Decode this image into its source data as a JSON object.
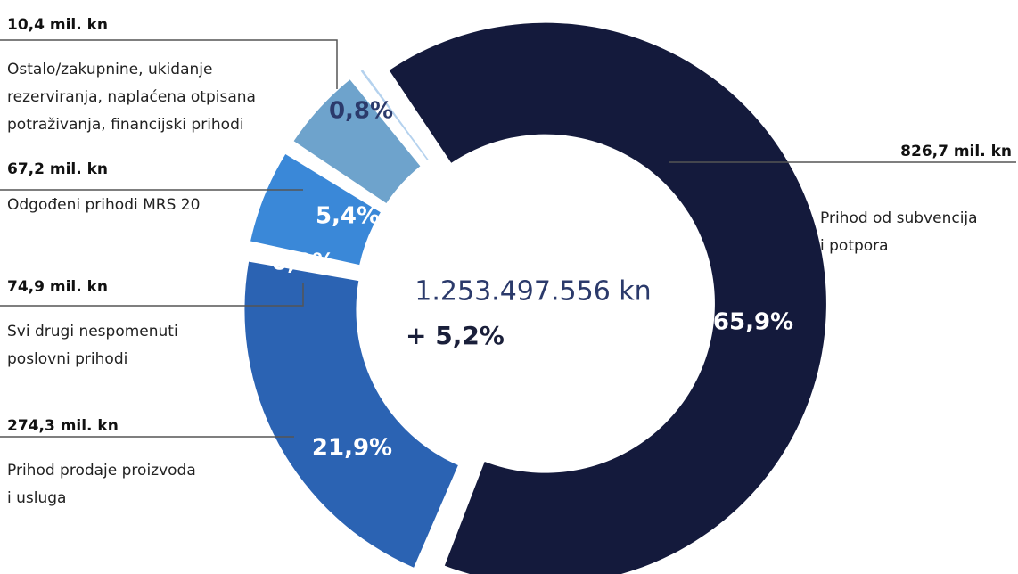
{
  "chart_data": {
    "type": "donut",
    "categories": [
      [
        "Prihod od subvencija",
        "i potpora"
      ],
      [
        "Prihod prodaje proizvoda",
        "i usluga"
      ],
      [
        "Svi drugi nespomenuti",
        "poslovni prihodi"
      ],
      [
        "Odgođeni prihodi MRS 20"
      ],
      [
        "Ostalo/zakupnine, ukidanje",
        "rezerviranja, naplaćena otpisana",
        "potraživanja, financijski prihodi"
      ]
    ],
    "values": [
      65.9,
      21.9,
      6.0,
      5.4,
      0.8
    ],
    "value_labels": [
      "65,9%",
      "21,9%",
      "6,0%",
      "5,4%",
      "0,8%"
    ],
    "amount_labels": [
      "826,7 mil. kn",
      "274,3 mil. kn",
      "74,9 mil. kn",
      "67,2 mil. kn",
      "10,4 mil. kn"
    ],
    "colors": [
      "#141a3c",
      "#2b63b3",
      "#3a88d8",
      "#6ea3cc",
      "#b5d2ee"
    ],
    "center_total": "1.253.497.556 kn",
    "center_change": "+ 5,2%"
  }
}
